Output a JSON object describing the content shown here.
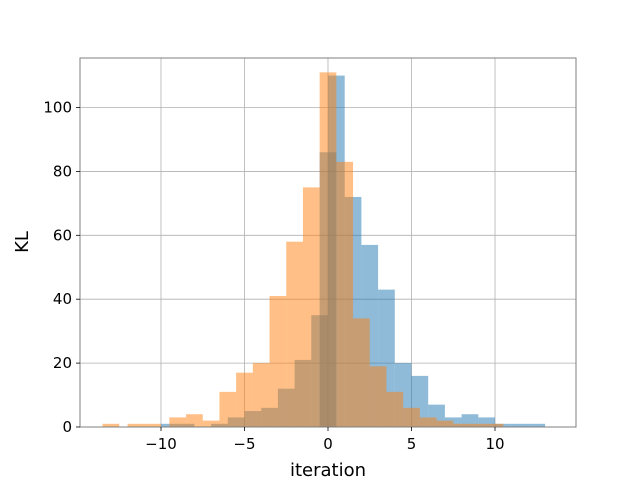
{
  "chart_data": {
    "type": "bar",
    "subtype": "overlapping-histogram",
    "title": "",
    "xlabel": "iteration",
    "ylabel": "KL",
    "xlim": [
      -14.85,
      14.85
    ],
    "ylim": [
      0,
      115.5
    ],
    "xticks": [
      -10,
      -5,
      0,
      5,
      10
    ],
    "xtick_labels": [
      "−10",
      "−5",
      "0",
      "5",
      "10"
    ],
    "yticks": [
      0,
      20,
      40,
      60,
      80,
      100
    ],
    "ytick_labels": [
      "0",
      "20",
      "40",
      "60",
      "80",
      "100"
    ],
    "grid": true,
    "bin_width": 1,
    "series": [
      {
        "color": "#1f77b4",
        "alpha": 0.5,
        "bins": [
          [
            -10,
            1
          ],
          [
            -9,
            1
          ],
          [
            -7,
            1
          ],
          [
            -6,
            3
          ],
          [
            -5,
            5
          ],
          [
            -4,
            6
          ],
          [
            -3,
            12
          ],
          [
            -2,
            21
          ],
          [
            -1,
            35
          ],
          [
            -0.5,
            86
          ],
          [
            0,
            110
          ],
          [
            1,
            72
          ],
          [
            2,
            57
          ],
          [
            3,
            43
          ],
          [
            4,
            20
          ],
          [
            5,
            16
          ],
          [
            6,
            7
          ],
          [
            7,
            3
          ],
          [
            8,
            4
          ],
          [
            9,
            3
          ],
          [
            10,
            1
          ],
          [
            11,
            1
          ],
          [
            12,
            1
          ]
        ]
      },
      {
        "color": "#ff7f0e",
        "alpha": 0.5,
        "bins": [
          [
            -13.5,
            1
          ],
          [
            -12,
            1
          ],
          [
            -11,
            1
          ],
          [
            -9.5,
            3
          ],
          [
            -8.5,
            4
          ],
          [
            -7.5,
            2
          ],
          [
            -6.5,
            11
          ],
          [
            -5.5,
            17
          ],
          [
            -4.5,
            20
          ],
          [
            -3.5,
            41
          ],
          [
            -2.5,
            58
          ],
          [
            -1.5,
            75
          ],
          [
            -0.5,
            111
          ],
          [
            0.5,
            83
          ],
          [
            1.5,
            34
          ],
          [
            2.5,
            19
          ],
          [
            3.5,
            11
          ],
          [
            4.5,
            6
          ],
          [
            5.5,
            3
          ],
          [
            6.5,
            2
          ],
          [
            7.5,
            1
          ],
          [
            8.5,
            1
          ],
          [
            9.5,
            1
          ]
        ]
      }
    ]
  }
}
